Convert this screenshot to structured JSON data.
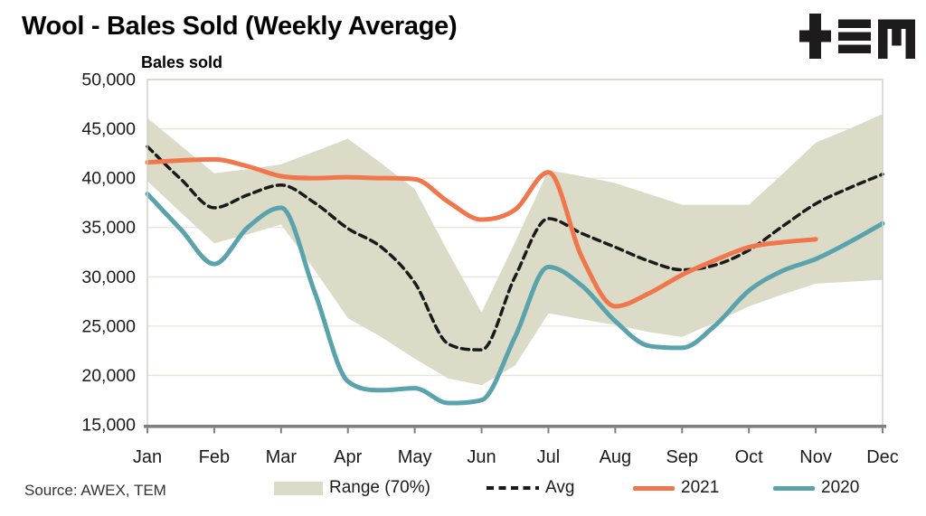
{
  "header": {
    "title": "Wool - Bales Sold (Weekly Average)",
    "logo_name": "TEM logo (+ ≡ M)"
  },
  "footer": {
    "source": "Source: AWEX, TEM"
  },
  "legend": {
    "range": "Range (70%)",
    "avg": "Avg",
    "y2021": "2021",
    "y2020": "2020"
  },
  "colors": {
    "band": "#DBDBC7",
    "avg_line": "#1A1A1A",
    "line_2021": "#F0764B",
    "line_2020": "#5AA3AD",
    "gridline": "#E7E5DA",
    "plot_border": "#CFCEC2",
    "axis": "#7F7F7F",
    "text": "#1A1A1A"
  },
  "chart_data": {
    "type": "line",
    "title": "Wool - Bales Sold (Weekly Average)",
    "ylabel": "Bales sold",
    "xlabel": "",
    "ylim": [
      15000,
      50000
    ],
    "y_ticks": [
      50000,
      45000,
      40000,
      35000,
      30000,
      25000,
      20000,
      15000
    ],
    "y_tick_labels": [
      "50,000",
      "45,000",
      "40,000",
      "35,000",
      "30,000",
      "25,000",
      "20,000",
      "15,000"
    ],
    "x_categories": [
      "Jan",
      "Feb",
      "Mar",
      "Apr",
      "May",
      "Jun",
      "Jul",
      "Aug",
      "Sep",
      "Oct",
      "Nov",
      "Dec"
    ],
    "x_unit": "month index, 0 = Jan, sampled at half-month resolution",
    "grid": "horizontal",
    "legend_position": "bottom",
    "series": [
      {
        "name": "Range (70%)",
        "type": "band",
        "color": "#DBDBC7",
        "x": [
          0,
          0.5,
          1,
          1.5,
          2,
          2.5,
          3,
          3.5,
          4,
          4.5,
          5,
          5.5,
          6,
          6.5,
          7,
          7.5,
          8,
          8.5,
          9,
          9.5,
          10,
          10.5,
          11
        ],
        "upper": [
          46100,
          43300,
          40500,
          40900,
          41400,
          42700,
          44000,
          41500,
          38900,
          32500,
          26400,
          33500,
          40800,
          40200,
          39500,
          38400,
          37300,
          37300,
          37300,
          40400,
          43600,
          45000,
          46500
        ],
        "lower": [
          39700,
          36500,
          33400,
          34300,
          35300,
          30700,
          25800,
          23900,
          21700,
          19700,
          19000,
          21000,
          26300,
          25700,
          25100,
          24400,
          23900,
          25400,
          27000,
          28200,
          29300,
          29500,
          29700
        ]
      },
      {
        "name": "Avg",
        "type": "line",
        "line_style": "dashed",
        "color": "#1A1A1A",
        "width": 3.5,
        "x": [
          0,
          0.5,
          1,
          1.5,
          2,
          2.5,
          3,
          3.5,
          4,
          4.5,
          5,
          5.5,
          6,
          6.5,
          7,
          7.5,
          8,
          8.5,
          9,
          9.5,
          10,
          10.5,
          11
        ],
        "values": [
          43200,
          39900,
          37000,
          38300,
          39300,
          37500,
          34900,
          33000,
          29400,
          23200,
          22600,
          30000,
          35900,
          34400,
          33000,
          31600,
          30700,
          31200,
          32700,
          35100,
          37400,
          39000,
          40400
        ]
      },
      {
        "name": "2021",
        "type": "line",
        "line_style": "solid",
        "color": "#F0764B",
        "width": 5,
        "x": [
          0,
          0.5,
          1,
          1.5,
          2,
          2.5,
          3,
          3.5,
          4,
          4.5,
          5,
          5.5,
          6,
          6.5,
          7,
          7.5,
          8,
          8.5,
          9,
          9.5,
          10
        ],
        "values": [
          41600,
          41800,
          41900,
          41200,
          40200,
          40000,
          40100,
          40000,
          39900,
          37600,
          35800,
          36800,
          40600,
          32000,
          27000,
          28300,
          30200,
          31700,
          33000,
          33500,
          33800
        ]
      },
      {
        "name": "2020",
        "type": "line",
        "line_style": "solid",
        "color": "#5AA3AD",
        "width": 5,
        "x": [
          0,
          0.5,
          1,
          1.5,
          2,
          2.5,
          3,
          3.5,
          4,
          4.5,
          5,
          5.5,
          6,
          6.5,
          7,
          7.5,
          8,
          8.5,
          9,
          9.5,
          10,
          10.5,
          11
        ],
        "values": [
          38400,
          34800,
          31300,
          35000,
          37000,
          28500,
          19400,
          18500,
          18700,
          17200,
          17500,
          23900,
          31000,
          29100,
          25500,
          23000,
          22800,
          25100,
          28600,
          30600,
          31800,
          33500,
          35400
        ]
      }
    ]
  }
}
